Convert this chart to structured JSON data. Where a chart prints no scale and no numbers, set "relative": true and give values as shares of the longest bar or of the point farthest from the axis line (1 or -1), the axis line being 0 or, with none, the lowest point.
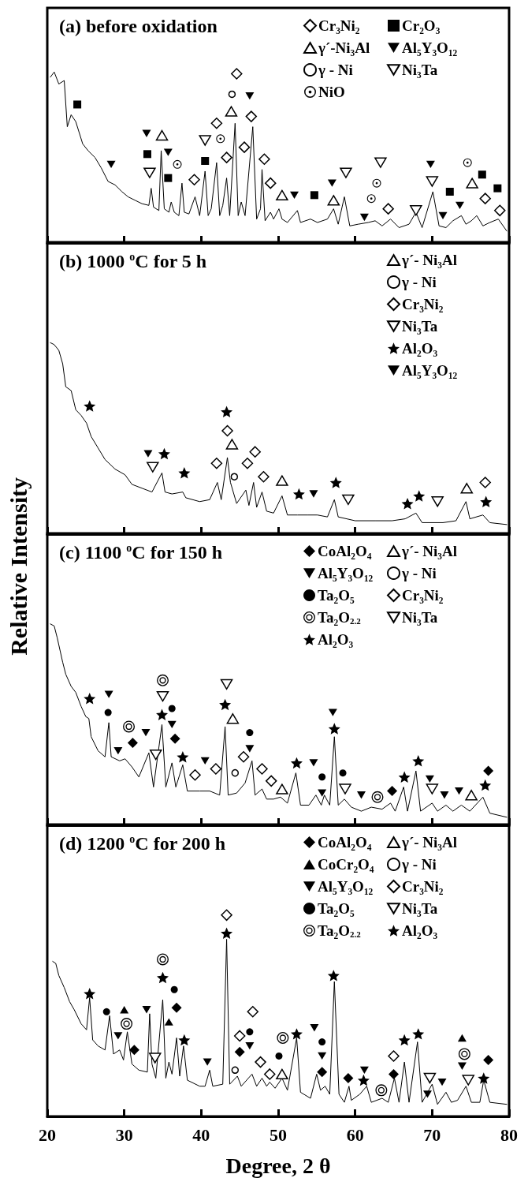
{
  "chart_data": [
    {
      "type": "line",
      "title": "(a) before oxidation",
      "relative": true,
      "legend": "top right",
      "xlim": [
        20,
        80
      ],
      "xticks": [
        20,
        30,
        40,
        50,
        60,
        70,
        80
      ],
      "tick_labels": false,
      "series": [
        {
          "color": "#000000",
          "x": [
            20.4,
            20.9,
            21.5,
            22.2,
            22.6,
            23.1,
            23.7,
            24.6,
            25.3,
            26.2,
            27.0,
            27.9,
            28.8,
            29.7,
            30.5,
            31.4,
            32.3,
            33.2,
            33.5,
            33.8,
            34.5,
            34.8,
            35.2,
            35.8,
            36.1,
            36.5,
            37.1,
            37.5,
            37.8,
            38.4,
            39.2,
            39.8,
            40.5,
            40.9,
            41.3,
            42.0,
            42.4,
            42.8,
            43.3,
            43.7,
            44.4,
            44.8,
            45.2,
            45.7,
            46.7,
            47.2,
            47.7,
            47.9,
            48.3,
            49.0,
            49.4,
            50.1,
            50.5,
            51.2,
            52.5,
            52.9,
            54.2,
            55.1,
            56.4,
            57.2,
            57.8,
            58.6,
            59.3,
            60.4,
            61.7,
            62.6,
            63.5,
            64.6,
            65.7,
            67.0,
            67.9,
            68.7,
            70.1,
            70.9,
            71.8,
            72.7,
            73.8,
            74.4,
            75.1,
            75.8,
            76.6,
            77.5,
            78.6,
            79.7
          ],
          "values": [
            0.97,
            1.0,
            0.93,
            0.95,
            0.68,
            0.75,
            0.71,
            0.58,
            0.54,
            0.5,
            0.44,
            0.36,
            0.34,
            0.3,
            0.27,
            0.25,
            0.23,
            0.22,
            0.32,
            0.21,
            0.19,
            0.54,
            0.2,
            0.18,
            0.24,
            0.18,
            0.16,
            0.35,
            0.18,
            0.17,
            0.27,
            0.16,
            0.42,
            0.16,
            0.2,
            0.47,
            0.16,
            0.22,
            0.38,
            0.16,
            0.7,
            0.16,
            0.24,
            0.16,
            0.68,
            0.14,
            0.2,
            0.43,
            0.13,
            0.18,
            0.14,
            0.2,
            0.14,
            0.12,
            0.19,
            0.12,
            0.14,
            0.12,
            0.14,
            0.2,
            0.11,
            0.27,
            0.1,
            0.11,
            0.12,
            0.13,
            0.1,
            0.14,
            0.09,
            0.11,
            0.18,
            0.09,
            0.3,
            0.1,
            0.09,
            0.13,
            0.16,
            0.11,
            0.13,
            0.16,
            0.1,
            0.12,
            0.14,
            0.07
          ]
        },
        {
          "name": "Cr₃Ni₂",
          "type": "scatter",
          "marker": "diamond-open",
          "color": "#000000",
          "x": [
            39.1,
            42.0,
            43.3,
            44.6,
            45.6,
            46.5,
            48.2,
            49.0,
            64.3,
            76.9,
            78.8
          ],
          "values": [
            0.37,
            0.7,
            0.5,
            0.99,
            0.56,
            0.74,
            0.49,
            0.35,
            0.2,
            0.26,
            0.19
          ]
        },
        {
          "name": "Cr₂O₃",
          "type": "scatter",
          "marker": "square",
          "color": "#000000",
          "x": [
            23.9,
            33.0,
            35.7,
            40.5,
            54.7,
            72.3,
            76.5,
            78.5
          ],
          "values": [
            0.81,
            0.52,
            0.38,
            0.48,
            0.28,
            0.3,
            0.4,
            0.32
          ]
        },
        {
          "name": "γ´-Ni₃Al",
          "type": "scatter",
          "marker": "triangle-up-open",
          "color": "#000000",
          "x": [
            34.9,
            43.9,
            50.5,
            57.2,
            75.2
          ],
          "values": [
            0.63,
            0.77,
            0.28,
            0.25,
            0.35
          ]
        },
        {
          "name": "Al₅Y₃O₁₂",
          "type": "scatter",
          "marker": "triangle-down",
          "color": "#000000",
          "x": [
            28.3,
            32.9,
            35.7,
            46.3,
            52.1,
            57.0,
            61.2,
            69.8,
            71.4,
            73.6
          ],
          "values": [
            0.46,
            0.64,
            0.53,
            0.86,
            0.28,
            0.35,
            0.15,
            0.46,
            0.16,
            0.22
          ]
        },
        {
          "name": "γ - Ni",
          "type": "scatter",
          "marker": "circle-open",
          "color": "#000000",
          "x": [
            44.0
          ],
          "values": [
            0.87
          ]
        },
        {
          "name": "Ni₃Ta",
          "type": "scatter",
          "marker": "triangle-down-open",
          "color": "#000000",
          "x": [
            33.3,
            40.5,
            58.8,
            63.3,
            67.9,
            70.0
          ],
          "values": [
            0.41,
            0.6,
            0.41,
            0.47,
            0.19,
            0.36
          ]
        },
        {
          "name": "NiO",
          "type": "scatter",
          "marker": "circle-dot",
          "color": "#000000",
          "x": [
            36.9,
            42.5,
            62.1,
            62.8,
            74.6
          ],
          "values": [
            0.46,
            0.61,
            0.26,
            0.35,
            0.47
          ]
        }
      ]
    },
    {
      "type": "line",
      "title": "(b) 1000 $^{o}$C for 5 h",
      "ylabel": "Relative Intensity",
      "relative": true,
      "legend": "top right",
      "xlim": [
        20,
        80
      ],
      "xticks": [
        20,
        30,
        40,
        50,
        60,
        70,
        80
      ],
      "tick_labels": false,
      "series": [
        {
          "color": "#000000",
          "x": [
            20.4,
            20.9,
            21.5,
            22.0,
            22.4,
            23.1,
            23.7,
            24.4,
            25.1,
            25.7,
            26.6,
            27.5,
            28.8,
            30.1,
            31.0,
            32.3,
            33.6,
            34.9,
            35.3,
            36.2,
            37.6,
            38.0,
            39.8,
            41.1,
            42.1,
            42.6,
            43.4,
            43.8,
            44.6,
            45.8,
            46.2,
            46.8,
            47.2,
            47.9,
            48.5,
            49.4,
            50.5,
            51.2,
            52.5,
            53.8,
            55.1,
            56.4,
            57.3,
            57.8,
            60.0,
            62.6,
            64.8,
            66.5,
            67.9,
            68.7,
            71.4,
            73.1,
            74.4,
            74.9,
            76.6,
            77.5,
            79.7
          ],
          "values": [
            1.0,
            0.99,
            0.96,
            0.89,
            0.77,
            0.75,
            0.65,
            0.62,
            0.58,
            0.51,
            0.45,
            0.39,
            0.34,
            0.31,
            0.26,
            0.24,
            0.22,
            0.32,
            0.22,
            0.21,
            0.22,
            0.19,
            0.17,
            0.18,
            0.27,
            0.18,
            0.4,
            0.27,
            0.16,
            0.23,
            0.15,
            0.27,
            0.14,
            0.22,
            0.12,
            0.11,
            0.2,
            0.1,
            0.1,
            0.1,
            0.1,
            0.09,
            0.18,
            0.09,
            0.07,
            0.07,
            0.07,
            0.08,
            0.11,
            0.06,
            0.06,
            0.07,
            0.17,
            0.08,
            0.1,
            0.06,
            0.05
          ]
        },
        {
          "name": "γ´- Ni₃Al",
          "type": "scatter",
          "marker": "triangle-up-open",
          "color": "#000000",
          "x": [
            44.0,
            50.5,
            74.5
          ],
          "values": [
            0.47,
            0.28,
            0.24
          ]
        },
        {
          "name": "γ - Ni",
          "type": "scatter",
          "marker": "circle-open",
          "color": "#000000",
          "x": [
            44.3
          ],
          "values": [
            0.3
          ]
        },
        {
          "name": "Cr₃Ni₂",
          "type": "scatter",
          "marker": "diamond-open",
          "color": "#000000",
          "x": [
            42.0,
            43.4,
            46.0,
            47.0,
            48.1,
            76.9
          ],
          "values": [
            0.37,
            0.54,
            0.37,
            0.43,
            0.3,
            0.27
          ]
        },
        {
          "name": "Ni₃Ta",
          "type": "scatter",
          "marker": "triangle-down-open",
          "color": "#000000",
          "x": [
            33.7,
            59.1,
            70.7
          ],
          "values": [
            0.35,
            0.18,
            0.17
          ]
        },
        {
          "name": "Al₂O₃",
          "type": "scatter",
          "marker": "star",
          "color": "#000000",
          "x": [
            25.5,
            35.2,
            37.8,
            43.3,
            52.7,
            57.5,
            66.8,
            68.3,
            77.0
          ],
          "values": [
            0.67,
            0.42,
            0.32,
            0.64,
            0.21,
            0.27,
            0.16,
            0.2,
            0.17
          ]
        },
        {
          "name": "Al₅Y₃O₁₂",
          "type": "scatter",
          "marker": "triangle-down",
          "color": "#000000",
          "x": [
            33.1,
            54.6
          ],
          "values": [
            0.42,
            0.21
          ]
        }
      ]
    },
    {
      "type": "line",
      "title": "(c) 1100 $^{o}$C for 150 h",
      "relative": true,
      "legend": "top right",
      "xlim": [
        20,
        80
      ],
      "xticks": [
        20,
        30,
        40,
        50,
        60,
        70,
        80
      ],
      "tick_labels": false,
      "series": [
        {
          "color": "#000000",
          "x": [
            20.4,
            20.9,
            21.3,
            22.0,
            22.4,
            23.1,
            23.7,
            24.4,
            25.0,
            25.4,
            25.7,
            26.6,
            27.5,
            28.0,
            28.3,
            29.4,
            30.1,
            31.0,
            31.9,
            33.2,
            33.8,
            34.9,
            35.4,
            36.2,
            36.7,
            37.6,
            38.2,
            39.8,
            41.1,
            42.4,
            43.1,
            43.5,
            44.6,
            45.7,
            46.6,
            47.0,
            47.9,
            48.5,
            49.4,
            50.3,
            51.2,
            52.3,
            52.9,
            54.0,
            54.9,
            55.6,
            56.0,
            56.7,
            57.3,
            57.8,
            58.6,
            59.5,
            60.8,
            62.1,
            63.5,
            64.6,
            65.2,
            66.3,
            66.8,
            67.9,
            68.5,
            70.0,
            70.7,
            71.8,
            72.7,
            73.8,
            74.9,
            76.6,
            77.5,
            79.7
          ],
          "values": [
            1.0,
            0.99,
            0.93,
            0.81,
            0.75,
            0.69,
            0.66,
            0.59,
            0.54,
            0.53,
            0.44,
            0.37,
            0.34,
            0.51,
            0.34,
            0.32,
            0.33,
            0.29,
            0.24,
            0.36,
            0.19,
            0.5,
            0.19,
            0.31,
            0.19,
            0.3,
            0.17,
            0.17,
            0.17,
            0.15,
            0.49,
            0.15,
            0.16,
            0.21,
            0.32,
            0.15,
            0.18,
            0.13,
            0.13,
            0.14,
            0.11,
            0.26,
            0.1,
            0.1,
            0.15,
            0.1,
            0.15,
            0.1,
            0.44,
            0.1,
            0.13,
            0.09,
            0.07,
            0.09,
            0.08,
            0.11,
            0.07,
            0.19,
            0.07,
            0.27,
            0.07,
            0.11,
            0.07,
            0.1,
            0.07,
            0.1,
            0.07,
            0.14,
            0.06,
            0.04
          ]
        },
        {
          "name": "CoAl₂O₄",
          "type": "scatter",
          "marker": "diamond",
          "color": "#000000",
          "x": [
            31.1,
            36.6,
            64.8,
            77.3
          ],
          "values": [
            0.41,
            0.43,
            0.17,
            0.27
          ]
        },
        {
          "name": "γ´- Ni₃Al",
          "type": "scatter",
          "marker": "triangle-up-open",
          "color": "#000000",
          "x": [
            44.1,
            50.5,
            75.1
          ],
          "values": [
            0.53,
            0.18,
            0.15
          ]
        },
        {
          "name": "Al₅Y₃O₁₂",
          "type": "scatter",
          "marker": "triangle-down",
          "color": "#000000",
          "x": [
            28.0,
            29.2,
            32.8,
            36.2,
            40.5,
            46.3,
            54.6,
            55.7,
            57.1,
            60.8,
            69.7,
            71.6,
            73.5
          ],
          "values": [
            0.65,
            0.37,
            0.46,
            0.5,
            0.32,
            0.38,
            0.31,
            0.16,
            0.56,
            0.15,
            0.23,
            0.15,
            0.17
          ]
        },
        {
          "name": "γ - Ni",
          "type": "scatter",
          "marker": "circle-open",
          "color": "#000000",
          "x": [
            44.4
          ],
          "values": [
            0.26
          ]
        },
        {
          "name": "Ta₂O₅",
          "type": "scatter",
          "marker": "circle",
          "color": "#000000",
          "x": [
            27.9,
            36.2,
            46.3,
            55.7,
            58.4
          ],
          "values": [
            0.56,
            0.58,
            0.46,
            0.24,
            0.26
          ]
        },
        {
          "name": "Cr₃Ni₂",
          "type": "scatter",
          "marker": "diamond-open",
          "color": "#000000",
          "x": [
            39.2,
            41.9,
            45.5,
            47.9,
            49.1
          ],
          "values": [
            0.25,
            0.28,
            0.34,
            0.28,
            0.22
          ]
        },
        {
          "name": "Ta₂O$_{2.2}$",
          "type": "scatter",
          "marker": "circle-double",
          "color": "#000000",
          "x": [
            30.6,
            35.0,
            62.9
          ],
          "values": [
            0.49,
            0.72,
            0.14
          ]
        },
        {
          "name": "Ni₃Ta",
          "type": "scatter",
          "marker": "triangle-down-open",
          "color": "#000000",
          "x": [
            34.1,
            35.0,
            43.3,
            58.7,
            70.0
          ],
          "values": [
            0.35,
            0.64,
            0.7,
            0.18,
            0.18
          ]
        },
        {
          "name": "Al₂O₃",
          "type": "scatter",
          "marker": "star",
          "color": "#000000",
          "x": [
            25.5,
            34.9,
            37.6,
            43.1,
            52.4,
            57.3,
            66.4,
            68.2,
            76.9
          ],
          "values": [
            0.63,
            0.55,
            0.34,
            0.6,
            0.31,
            0.48,
            0.24,
            0.32,
            0.2
          ]
        }
      ]
    },
    {
      "type": "line",
      "title": "(d) 1200 $^{o}$C for 200 h",
      "xlabel": "Degree, 2 θ",
      "relative": true,
      "legend": "top right",
      "xlim": [
        20,
        80
      ],
      "xticks": [
        20,
        30,
        40,
        50,
        60,
        70,
        80
      ],
      "tick_labels": "x",
      "series": [
        {
          "color": "#000000",
          "x": [
            20.7,
            21.1,
            21.5,
            22.2,
            22.9,
            23.5,
            24.4,
            25.1,
            25.5,
            25.9,
            26.6,
            27.5,
            28.1,
            28.6,
            29.4,
            29.9,
            30.4,
            31.0,
            31.9,
            33.0,
            33.3,
            33.6,
            34.1,
            35.0,
            35.4,
            35.8,
            36.2,
            36.8,
            37.2,
            37.7,
            38.2,
            39.8,
            40.5,
            41.1,
            41.5,
            42.8,
            43.3,
            43.7,
            44.7,
            45.2,
            46.6,
            47.2,
            47.9,
            48.5,
            48.9,
            49.6,
            50.5,
            51.2,
            52.4,
            52.9,
            54.2,
            55.0,
            55.5,
            56.1,
            56.7,
            57.3,
            57.9,
            58.6,
            59.2,
            59.5,
            60.6,
            61.5,
            62.1,
            63.5,
            64.3,
            65.1,
            65.7,
            66.4,
            67.0,
            68.1,
            68.7,
            70.0,
            70.7,
            71.8,
            72.5,
            73.3,
            74.4,
            75.1,
            76.2,
            76.7,
            77.5,
            79.7
          ],
          "values": [
            0.77,
            0.76,
            0.7,
            0.64,
            0.57,
            0.53,
            0.46,
            0.43,
            0.59,
            0.38,
            0.35,
            0.33,
            0.5,
            0.31,
            0.33,
            0.28,
            0.42,
            0.26,
            0.23,
            0.22,
            0.51,
            0.26,
            0.19,
            0.58,
            0.19,
            0.27,
            0.21,
            0.39,
            0.2,
            0.35,
            0.18,
            0.15,
            0.15,
            0.23,
            0.15,
            0.16,
            0.88,
            0.16,
            0.2,
            0.15,
            0.21,
            0.15,
            0.19,
            0.15,
            0.17,
            0.14,
            0.19,
            0.13,
            0.39,
            0.12,
            0.09,
            0.21,
            0.13,
            0.15,
            0.11,
            0.67,
            0.11,
            0.07,
            0.15,
            0.08,
            0.11,
            0.15,
            0.07,
            0.09,
            0.07,
            0.19,
            0.07,
            0.27,
            0.07,
            0.37,
            0.07,
            0.16,
            0.06,
            0.12,
            0.07,
            0.08,
            0.15,
            0.07,
            0.07,
            0.18,
            0.07,
            0.06
          ]
        },
        {
          "name": "CoAl₂O₄",
          "type": "scatter",
          "marker": "diamond",
          "color": "#000000",
          "x": [
            31.3,
            36.8,
            45.0,
            55.7,
            59.1,
            65.0,
            77.3
          ],
          "values": [
            0.33,
            0.54,
            0.32,
            0.22,
            0.19,
            0.21,
            0.28
          ]
        },
        {
          "name": "γ´- Ni₃Al",
          "type": "scatter",
          "marker": "triangle-up-open",
          "color": "#000000",
          "x": [
            50.5
          ],
          "values": [
            0.21
          ]
        },
        {
          "name": "CoCr₂O₄",
          "type": "scatter",
          "marker": "triangle-up",
          "color": "#000000",
          "x": [
            30.0,
            35.8,
            73.9
          ],
          "values": [
            0.53,
            0.47,
            0.39
          ]
        },
        {
          "name": "γ - Ni",
          "type": "scatter",
          "marker": "circle-open",
          "color": "#000000",
          "x": [
            44.4
          ],
          "values": [
            0.23
          ]
        },
        {
          "name": "Al₅Y₃O₁₂",
          "type": "scatter",
          "marker": "triangle-down",
          "color": "#000000",
          "x": [
            29.2,
            32.9,
            40.8,
            46.3,
            54.7,
            55.7,
            61.2,
            69.4,
            71.3,
            73.9
          ],
          "values": [
            0.4,
            0.53,
            0.27,
            0.35,
            0.44,
            0.3,
            0.23,
            0.11,
            0.17,
            0.25
          ]
        },
        {
          "name": "Cr₃Ni₂",
          "type": "scatter",
          "marker": "diamond-open",
          "color": "#000000",
          "x": [
            43.3,
            45.0,
            46.7,
            47.7,
            48.9,
            65.0
          ],
          "values": [
            1.0,
            0.4,
            0.52,
            0.27,
            0.21,
            0.3
          ]
        },
        {
          "name": "Ta₂O₅",
          "type": "scatter",
          "marker": "circle",
          "color": "#000000",
          "x": [
            27.7,
            36.5,
            46.3,
            50.1,
            55.7
          ],
          "values": [
            0.52,
            0.63,
            0.42,
            0.3,
            0.37
          ]
        },
        {
          "name": "Ni₃Ta",
          "type": "scatter",
          "marker": "triangle-down-open",
          "color": "#000000",
          "x": [
            34.0,
            69.7,
            74.7
          ],
          "values": [
            0.29,
            0.19,
            0.18
          ]
        },
        {
          "name": "Ta₂O$_{2.2}$",
          "type": "scatter",
          "marker": "circle-double",
          "color": "#000000",
          "x": [
            30.3,
            35.0,
            50.6,
            63.4,
            74.2
          ],
          "values": [
            0.46,
            0.78,
            0.39,
            0.13,
            0.31
          ]
        },
        {
          "name": "Al₂O₃",
          "type": "scatter",
          "marker": "star",
          "color": "#000000",
          "x": [
            25.5,
            35.0,
            37.8,
            43.3,
            52.4,
            57.2,
            61.1,
            66.4,
            68.2,
            76.7
          ],
          "values": [
            0.61,
            0.69,
            0.38,
            0.91,
            0.41,
            0.7,
            0.18,
            0.38,
            0.41,
            0.19
          ]
        }
      ]
    }
  ]
}
